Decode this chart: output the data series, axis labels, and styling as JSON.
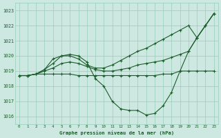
{
  "background_color": "#cce8e0",
  "grid_color": "#99ccbb",
  "line_color": "#1a5c2a",
  "title": "Graphe pression niveau de la mer (hPa)",
  "xlim": [
    -0.5,
    23.5
  ],
  "ylim": [
    1015.5,
    1023.5
  ],
  "yticks": [
    1016,
    1017,
    1018,
    1019,
    1020,
    1021,
    1022,
    1023
  ],
  "xticks": [
    0,
    1,
    2,
    3,
    4,
    5,
    6,
    7,
    8,
    9,
    10,
    11,
    12,
    13,
    14,
    15,
    16,
    17,
    18,
    19,
    20,
    21,
    22,
    23
  ],
  "series": [
    {
      "x": [
        0,
        1,
        2,
        3,
        4,
        5,
        6,
        7,
        8,
        9,
        10,
        11,
        12,
        13,
        14,
        15,
        16,
        17,
        18,
        19,
        20,
        21,
        22,
        23
      ],
      "y": [
        1018.7,
        1018.7,
        1018.8,
        1019.1,
        1019.8,
        1020.0,
        1020.0,
        1019.8,
        1019.4,
        1019.2,
        1019.2,
        1019.4,
        1019.7,
        1020.0,
        1020.3,
        1020.5,
        1020.8,
        1021.1,
        1021.4,
        1021.7,
        1022.0,
        1021.2,
        1022.0,
        1022.8
      ]
    },
    {
      "x": [
        0,
        1,
        2,
        3,
        4,
        5,
        6,
        7,
        8,
        9,
        10,
        11,
        12,
        13,
        14,
        15,
        16,
        17,
        18,
        19,
        20,
        21,
        22,
        23
      ],
      "y": [
        1018.7,
        1018.7,
        1018.8,
        1019.0,
        1019.2,
        1019.5,
        1019.6,
        1019.5,
        1019.3,
        1019.1,
        1019.0,
        1019.0,
        1019.1,
        1019.2,
        1019.4,
        1019.5,
        1019.6,
        1019.7,
        1019.9,
        1020.1,
        1020.3,
        1021.2,
        1022.0,
        1022.8
      ]
    },
    {
      "x": [
        0,
        1,
        2,
        3,
        4,
        5,
        6,
        7,
        8,
        9,
        10,
        11,
        12,
        13,
        14,
        15,
        16,
        17,
        18,
        19,
        20,
        21,
        22,
        23
      ],
      "y": [
        1018.7,
        1018.7,
        1018.8,
        1018.8,
        1018.8,
        1018.8,
        1018.8,
        1018.7,
        1018.7,
        1018.7,
        1018.7,
        1018.7,
        1018.7,
        1018.7,
        1018.7,
        1018.7,
        1018.7,
        1018.8,
        1018.8,
        1019.0,
        1019.0,
        1019.0,
        1019.0,
        1019.0
      ]
    },
    {
      "x": [
        0,
        1,
        2,
        3,
        4,
        5,
        6,
        7,
        8,
        9,
        10,
        11,
        12,
        13,
        14,
        15,
        16,
        17,
        18,
        19,
        20,
        21,
        22,
        23
      ],
      "y": [
        1018.7,
        1018.7,
        1018.8,
        1019.1,
        1019.5,
        1020.0,
        1020.1,
        1020.0,
        1019.6,
        1018.5,
        1018.0,
        1017.0,
        1016.5,
        1016.4,
        1016.4,
        1016.1,
        1016.2,
        1016.7,
        1017.6,
        1019.0,
        1020.3,
        1021.2,
        1022.0,
        1022.8
      ]
    }
  ]
}
